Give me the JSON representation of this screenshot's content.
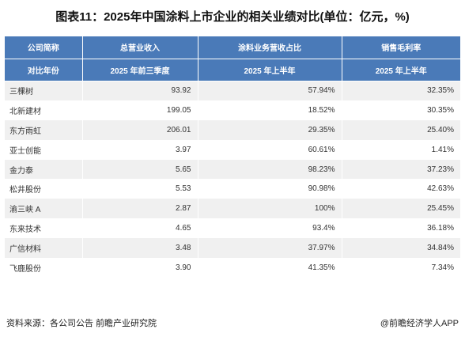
{
  "title": "图表11：2025年中国涂料上市企业的相关业绩对比(单位：亿元，%)",
  "chart_data": {
    "type": "table",
    "header_row1": [
      "公司简称",
      "总营业收入",
      "涂料业务营收占比",
      "销售毛利率"
    ],
    "header_row2": [
      "对比年份",
      "2025 年前三季度",
      "2025 年上半年",
      "2025 年上半年"
    ],
    "rows": [
      {
        "company": "三棵树",
        "revenue": "93.92",
        "coating_share": "57.94%",
        "gross_margin": "32.35%"
      },
      {
        "company": "北新建材",
        "revenue": "199.05",
        "coating_share": "18.52%",
        "gross_margin": "30.35%"
      },
      {
        "company": "东方雨虹",
        "revenue": "206.01",
        "coating_share": "29.35%",
        "gross_margin": "25.40%"
      },
      {
        "company": "亚士创能",
        "revenue": "3.97",
        "coating_share": "60.61%",
        "gross_margin": "1.41%"
      },
      {
        "company": "金力泰",
        "revenue": "5.65",
        "coating_share": "98.23%",
        "gross_margin": "37.23%"
      },
      {
        "company": "松井股份",
        "revenue": "5.53",
        "coating_share": "90.98%",
        "gross_margin": "42.63%"
      },
      {
        "company": "渝三峡 A",
        "revenue": "2.87",
        "coating_share": "100%",
        "gross_margin": "25.45%"
      },
      {
        "company": "东来技术",
        "revenue": "4.65",
        "coating_share": "93.4%",
        "gross_margin": "36.18%"
      },
      {
        "company": "广信材料",
        "revenue": "3.48",
        "coating_share": "37.97%",
        "gross_margin": "34.84%"
      },
      {
        "company": "飞鹿股份",
        "revenue": "3.90",
        "coating_share": "41.35%",
        "gross_margin": "7.34%"
      }
    ]
  },
  "footer": {
    "source": "资料来源：各公司公告 前瞻产业研究院",
    "brand": "@前瞻经济学人APP"
  }
}
